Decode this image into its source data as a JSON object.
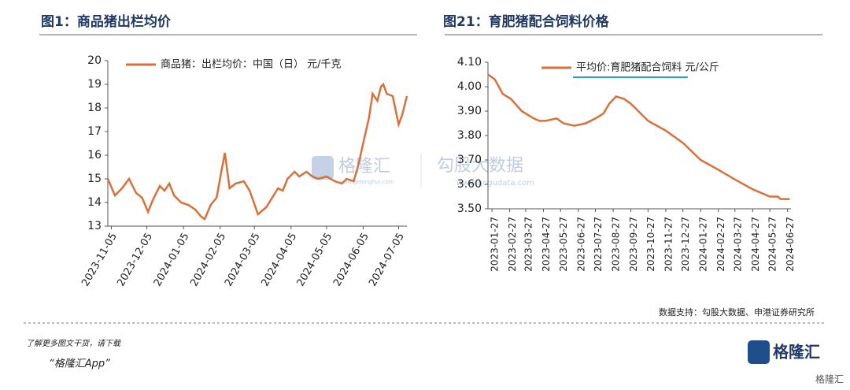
{
  "chart_data": [
    {
      "type": "line",
      "title": "图1：商品猪出栏均价",
      "series": [
        {
          "name": "商品猪：出栏均价：中国（日） 元/千克",
          "color": "#d9703a",
          "x": [
            "2023-11-02",
            "2023-11-08",
            "2023-11-14",
            "2023-11-20",
            "2023-11-26",
            "2023-12-01",
            "2023-12-06",
            "2023-12-10",
            "2023-12-16",
            "2023-12-20",
            "2023-12-24",
            "2023-12-28",
            "2024-01-03",
            "2024-01-09",
            "2024-01-15",
            "2024-01-20",
            "2024-01-23",
            "2024-01-28",
            "2024-02-02",
            "2024-02-06",
            "2024-02-09",
            "2024-02-13",
            "2024-02-18",
            "2024-02-25",
            "2024-03-01",
            "2024-03-08",
            "2024-03-15",
            "2024-03-20",
            "2024-03-25",
            "2024-03-29",
            "2024-04-02",
            "2024-04-08",
            "2024-04-12",
            "2024-04-18",
            "2024-04-23",
            "2024-04-28",
            "2024-05-05",
            "2024-05-12",
            "2024-05-18",
            "2024-05-22",
            "2024-05-28",
            "2024-06-01",
            "2024-06-05",
            "2024-06-10",
            "2024-06-13",
            "2024-06-17",
            "2024-06-20",
            "2024-06-22",
            "2024-06-25",
            "2024-06-30",
            "2024-07-05",
            "2024-07-08",
            "2024-07-12"
          ],
          "values": [
            15.0,
            14.3,
            14.6,
            15.0,
            14.4,
            14.2,
            13.6,
            14.1,
            14.7,
            14.5,
            14.8,
            14.3,
            14.0,
            13.9,
            13.7,
            13.4,
            13.3,
            13.9,
            14.2,
            15.3,
            16.1,
            14.6,
            14.8,
            14.9,
            14.5,
            13.5,
            13.8,
            14.2,
            14.6,
            14.5,
            15.0,
            15.3,
            15.1,
            15.3,
            15.1,
            15.0,
            15.1,
            14.9,
            14.8,
            15.0,
            14.9,
            15.6,
            16.5,
            17.6,
            18.6,
            18.3,
            18.9,
            19.0,
            18.6,
            18.5,
            17.3,
            17.7,
            18.5
          ]
        }
      ],
      "xlim": [
        "2023-11-02",
        "2024-07-12"
      ],
      "xticks": [
        "2023-11-05",
        "2023-12-05",
        "2024-01-05",
        "2024-02-05",
        "2024-03-05",
        "2024-04-05",
        "2024-05-05",
        "2024-06-05",
        "2024-07-05"
      ],
      "ylim": [
        13,
        20
      ],
      "yticks": [
        13,
        14,
        15,
        16,
        17,
        18,
        19,
        20
      ]
    },
    {
      "type": "line",
      "title": "图21：育肥猪配合饲料价格",
      "series": [
        {
          "name": "平均价:育肥猪配合饲料 元/公斤",
          "color": "#d9703a",
          "x": [
            "2023-01-20",
            "2023-02-01",
            "2023-02-15",
            "2023-03-01",
            "2023-03-20",
            "2023-04-10",
            "2023-04-20",
            "2023-05-01",
            "2023-05-20",
            "2023-06-01",
            "2023-06-20",
            "2023-07-10",
            "2023-07-27",
            "2023-08-10",
            "2023-08-20",
            "2023-09-01",
            "2023-09-15",
            "2023-09-27",
            "2023-10-10",
            "2023-10-27",
            "2023-11-27",
            "2023-12-27",
            "2024-01-27",
            "2024-02-27",
            "2024-03-27",
            "2024-04-27",
            "2024-05-27",
            "2024-06-10",
            "2024-06-15",
            "2024-07-01"
          ],
          "values": [
            4.05,
            4.03,
            3.97,
            3.95,
            3.9,
            3.87,
            3.86,
            3.86,
            3.87,
            3.85,
            3.84,
            3.85,
            3.87,
            3.89,
            3.93,
            3.96,
            3.95,
            3.93,
            3.9,
            3.86,
            3.82,
            3.77,
            3.7,
            3.66,
            3.62,
            3.58,
            3.55,
            3.55,
            3.54,
            3.54
          ]
        }
      ],
      "xlim": [
        "2023-01-20",
        "2024-07-03"
      ],
      "xticks": [
        "2023-01-27",
        "2023-02-27",
        "2023-03-27",
        "2023-04-27",
        "2023-05-27",
        "2023-06-27",
        "2023-07-27",
        "2023-08-27",
        "2023-09-27",
        "2023-10-27",
        "2023-11-27",
        "2023-12-27",
        "2024-01-27",
        "2024-02-27",
        "2024-03-27",
        "2024-04-27",
        "2024-05-27",
        "2024-06-27"
      ],
      "ylim": [
        3.5,
        4.1
      ],
      "yticks": [
        {
          "value": 3.5,
          "label": "3.50"
        },
        {
          "value": 3.6,
          "label": "3.60"
        },
        {
          "value": 3.7,
          "label": "3.70"
        },
        {
          "value": 3.8,
          "label": "3.80"
        },
        {
          "value": 3.9,
          "label": "3.90"
        },
        {
          "value": 4.0,
          "label": "4.00"
        },
        {
          "value": 4.1,
          "label": "4.10"
        }
      ],
      "source": "数据支持：勾股大数据、申港证券研究所"
    }
  ],
  "watermark": {
    "brand": "格隆汇",
    "brand_url": "www.gelonghui.com",
    "partner": "勾股大数据",
    "partner_url": "www.gogudata.com"
  },
  "footer": {
    "prompt": "了解更多图文干货，请下载",
    "app": "“格隆汇App”",
    "logo": "格隆汇",
    "corner": "格隆汇"
  }
}
